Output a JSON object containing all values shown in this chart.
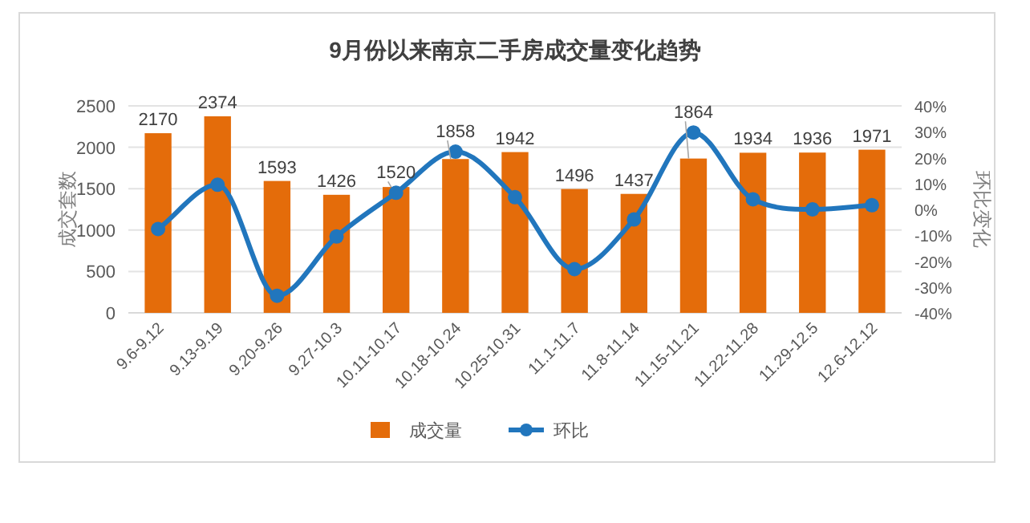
{
  "chart_data": {
    "type": "bar",
    "title": "9月份以来南京二手房成交量变化趋势",
    "ylabel": "成交套数",
    "y2label": "环比变化",
    "categories": [
      "9.6-9.12",
      "9.13-9.19",
      "9.20-9.26",
      "9.27-10.3",
      "10.11-10.17",
      "10.18-10.24",
      "10.25-10.31",
      "11.1-11.7",
      "11.8-11.14",
      "11.15-11.21",
      "11.22-11.28",
      "11.29-12.5",
      "12.6-12.12"
    ],
    "series": [
      {
        "name": "成交量",
        "color": "#e46c0a",
        "values": [
          2170,
          2374,
          1593,
          1426,
          1520,
          1858,
          1942,
          1496,
          1437,
          1864,
          1934,
          1936,
          1971
        ],
        "value_labels": [
          "2170",
          "2374",
          "1593",
          "1426",
          "1520",
          "1858",
          "1942",
          "1496",
          "1437",
          "1864",
          "1934",
          "1936",
          "1971"
        ]
      },
      {
        "name": "环比",
        "type": "line",
        "axis": "y2",
        "color": "#2176bd",
        "marker": "circle",
        "values": [
          -7.6,
          9.5,
          -33.4,
          -10.5,
          6.4,
          22.3,
          4.7,
          -23.1,
          -3.9,
          29.7,
          3.9,
          0.0,
          1.6
        ]
      }
    ],
    "ylim": [
      0,
      2500
    ],
    "yticks": [
      0,
      500,
      1000,
      1500,
      2000,
      2500
    ],
    "y2lim": [
      -40,
      40
    ],
    "y2ticks": [
      {
        "value": -40,
        "label": "-40%"
      },
      {
        "value": -30,
        "label": "-30%"
      },
      {
        "value": -20,
        "label": "-20%"
      },
      {
        "value": -10,
        "label": "-10%"
      },
      {
        "value": 0,
        "label": "0%"
      },
      {
        "value": 10,
        "label": "10%"
      },
      {
        "value": 20,
        "label": "20%"
      },
      {
        "value": 30,
        "label": "30%"
      },
      {
        "value": 40,
        "label": "40%"
      }
    ],
    "grid": "y",
    "legend": "bottom"
  }
}
